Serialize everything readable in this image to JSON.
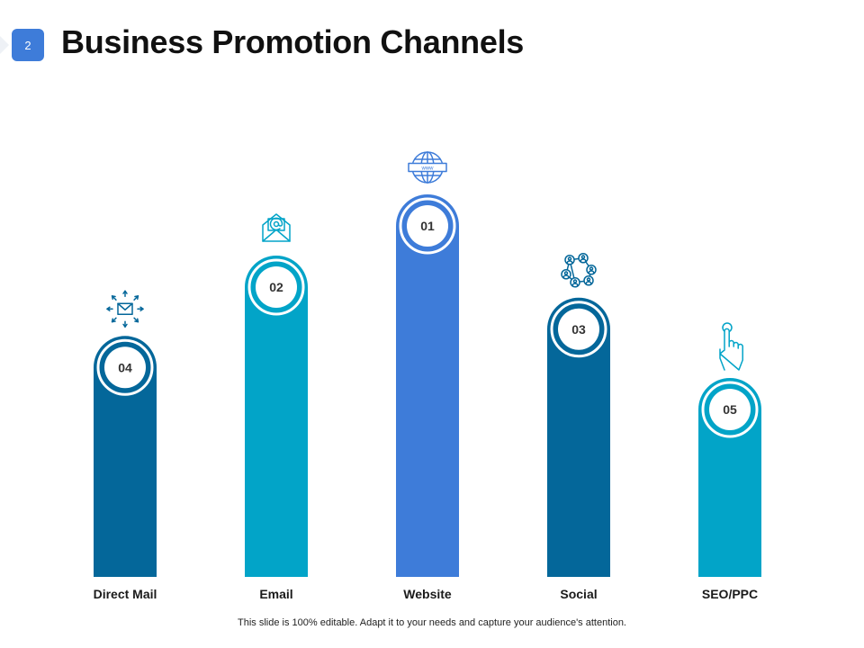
{
  "slide": {
    "number": "2",
    "title": "Business Promotion Channels",
    "footer": "This slide is 100% editable. Adapt it to your needs and capture your audience's attention."
  },
  "chart_data": {
    "type": "bar",
    "categories": [
      "Direct Mail",
      "Email",
      "Website",
      "Social",
      "SEO/PPC"
    ],
    "ranks": [
      "04",
      "02",
      "01",
      "03",
      "05"
    ],
    "values": [
      4,
      2,
      1,
      3,
      5
    ],
    "relative_heights": [
      0.63,
      0.84,
      1.0,
      0.73,
      0.52
    ],
    "icons": [
      "mail-broadcast-icon",
      "email-at-icon",
      "globe-www-icon",
      "social-network-icon",
      "click-hand-icon"
    ],
    "colors": [
      "#04679A",
      "#02A4C8",
      "#3E7CD9",
      "#04679A",
      "#02A4C8"
    ],
    "grid": false,
    "legend": "none"
  }
}
